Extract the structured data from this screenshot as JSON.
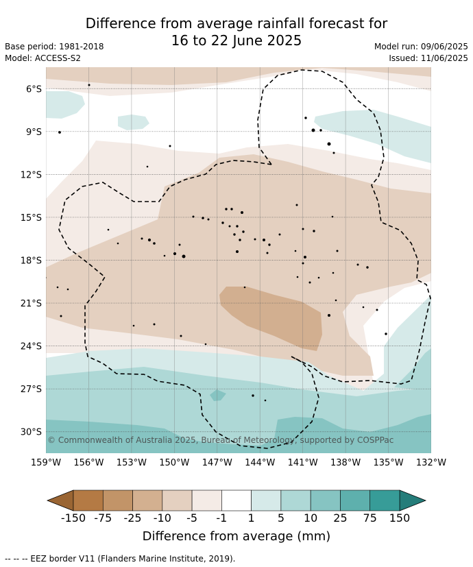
{
  "title": {
    "line1": "Difference from average rainfall forecast for",
    "line2": "16 to 22 June 2025"
  },
  "meta": {
    "base_period": "Base period: 1981-2018",
    "model": "Model: ACCESS-S2",
    "model_run": "Model run: 09/06/2025",
    "issued": "Issued: 11/06/2025"
  },
  "map": {
    "copyright": "© Commonwealth of Australia 2025, Bureau of Meteorology, supported by COSPPac",
    "lat_labels": [
      "6°S",
      "9°S",
      "12°S",
      "15°S",
      "18°S",
      "21°S",
      "24°S",
      "27°S",
      "30°S"
    ],
    "lon_labels": [
      "159°W",
      "156°W",
      "153°W",
      "150°W",
      "147°W",
      "144°W",
      "141°W",
      "138°W",
      "135°W",
      "132°W"
    ],
    "lat_range": [
      -31.5,
      -4.5
    ],
    "lon_range": [
      -159,
      -132
    ],
    "colors": {
      "light_brown": "#f4ebe6",
      "mid_brown": "#e4d0c0",
      "dark_brown": "#d2af90",
      "light_teal": "#d6eae9",
      "mid_teal": "#aed8d6",
      "teal": "#86c4c2"
    }
  },
  "colorbar": {
    "title": "Difference from average (mm)",
    "ticks": [
      "-150",
      "-75",
      "-25",
      "-10",
      "-5",
      "-1",
      "1",
      "5",
      "10",
      "25",
      "75",
      "150"
    ],
    "colors": [
      "#b47a44",
      "#c29468",
      "#d3b090",
      "#e4d0c0",
      "#f4ebe6",
      "#ffffff",
      "#d6eae9",
      "#aed8d6",
      "#86c4c2",
      "#5eb0ad",
      "#379c98"
    ],
    "low_extend_color": "#9a6533",
    "high_extend_color": "#257d7a"
  },
  "footer": "-- -- -- EEZ border V11 (Flanders Marine Institute, 2019)."
}
